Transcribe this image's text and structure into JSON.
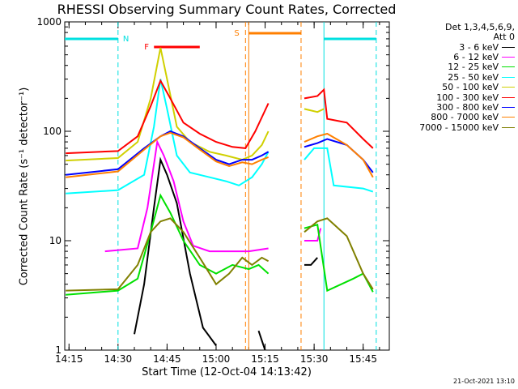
{
  "chart_data": {
    "type": "line",
    "title": "RHESSI Observing Summary Count Rates, Corrected",
    "xlabel": "Start Time (12-Oct-04 14:13:42)",
    "ylabel": "Corrected Count Rate (s⁻¹ detector⁻¹)",
    "yscale": "log",
    "ylim": [
      1,
      1000
    ],
    "xlim": [
      "14:13:42",
      "15:53"
    ],
    "x_ticks": [
      "14:15",
      "14:30",
      "14:45",
      "15:00",
      "15:15",
      "15:30",
      "15:45"
    ],
    "y_ticks": [
      "1",
      "10",
      "100",
      "1000"
    ],
    "legend_header": [
      "Det 1,3,4,5,6,9,",
      "Att 0"
    ],
    "legend_position": "top-right",
    "footer": "21-Oct-2021 13:10",
    "annotations": [
      {
        "label": "N",
        "color": "#00e0e0",
        "meaning": "night"
      },
      {
        "label": "F",
        "color": "#ff0000",
        "meaning": "flare"
      },
      {
        "label": "S",
        "color": "#ff7f00",
        "meaning": "SAA"
      }
    ],
    "series": [
      {
        "name": "3 - 6 keV",
        "color": "#000000",
        "points": [
          [
            "14:14",
            0
          ],
          [
            "14:30",
            0
          ],
          [
            "14:35",
            1.4
          ],
          [
            "14:38",
            4
          ],
          [
            "14:41",
            20
          ],
          [
            "14:43",
            55
          ],
          [
            "14:45",
            40
          ],
          [
            "14:48",
            22
          ],
          [
            "14:52",
            5
          ],
          [
            "14:56",
            1.6
          ],
          [
            "15:00",
            1.1
          ],
          [
            "15:05",
            0
          ],
          [
            "15:10",
            0
          ],
          [
            "15:13",
            1.5
          ],
          [
            "15:15",
            1
          ],
          [
            "15:17",
            0
          ],
          [
            "15:27",
            6
          ],
          [
            "15:29",
            6
          ],
          [
            "15:31",
            7
          ],
          [
            "15:35",
            0
          ]
        ]
      },
      {
        "name": "6 - 12 keV",
        "color": "#ff00ff",
        "points": [
          [
            "14:26",
            8
          ],
          [
            "14:36",
            8.5
          ],
          [
            "14:39",
            20
          ],
          [
            "14:42",
            80
          ],
          [
            "14:44",
            60
          ],
          [
            "14:47",
            35
          ],
          [
            "14:50",
            15
          ],
          [
            "14:53",
            9
          ],
          [
            "14:58",
            8
          ],
          [
            "15:05",
            8
          ],
          [
            "15:10",
            8
          ],
          [
            "15:16",
            8.5
          ],
          [
            "15:17",
            0
          ],
          [
            "15:27",
            10
          ],
          [
            "15:31",
            10
          ],
          [
            "15:32",
            13
          ],
          [
            "15:33",
            0
          ]
        ]
      },
      {
        "name": "12 - 25 keV",
        "color": "#00e000",
        "points": [
          [
            "14:14",
            3.2
          ],
          [
            "14:30",
            3.5
          ],
          [
            "14:36",
            4.5
          ],
          [
            "14:40",
            12
          ],
          [
            "14:43",
            26
          ],
          [
            "14:46",
            18
          ],
          [
            "14:50",
            10
          ],
          [
            "14:55",
            6
          ],
          [
            "15:00",
            5
          ],
          [
            "15:05",
            6
          ],
          [
            "15:10",
            5.5
          ],
          [
            "15:13",
            6
          ],
          [
            "15:16",
            5
          ],
          [
            "15:17",
            0
          ],
          [
            "15:27",
            13
          ],
          [
            "15:31",
            14
          ],
          [
            "15:34",
            3.5
          ],
          [
            "15:42",
            4.5
          ],
          [
            "15:45",
            5
          ],
          [
            "15:48",
            3.4
          ]
        ]
      },
      {
        "name": "25 - 50 keV",
        "color": "#00ffff",
        "points": [
          [
            "14:14",
            27
          ],
          [
            "14:30",
            29
          ],
          [
            "14:38",
            40
          ],
          [
            "14:41",
            110
          ],
          [
            "14:43",
            300
          ],
          [
            "14:45",
            160
          ],
          [
            "14:48",
            60
          ],
          [
            "14:52",
            42
          ],
          [
            "14:58",
            38
          ],
          [
            "15:03",
            35
          ],
          [
            "15:07",
            32
          ],
          [
            "15:11",
            38
          ],
          [
            "15:14",
            50
          ],
          [
            "15:16",
            65
          ],
          [
            "15:17",
            0
          ],
          [
            "15:27",
            55
          ],
          [
            "15:30",
            70
          ],
          [
            "15:34",
            70
          ],
          [
            "15:36",
            32
          ],
          [
            "15:45",
            30
          ],
          [
            "15:48",
            28
          ]
        ]
      },
      {
        "name": "50 - 100 keV",
        "color": "#d0d000",
        "points": [
          [
            "14:14",
            54
          ],
          [
            "14:30",
            57
          ],
          [
            "14:36",
            80
          ],
          [
            "14:40",
            200
          ],
          [
            "14:43",
            580
          ],
          [
            "14:45",
            300
          ],
          [
            "14:48",
            110
          ],
          [
            "14:52",
            80
          ],
          [
            "14:58",
            65
          ],
          [
            "15:03",
            60
          ],
          [
            "15:08",
            55
          ],
          [
            "15:11",
            60
          ],
          [
            "15:14",
            75
          ],
          [
            "15:16",
            100
          ],
          [
            "15:17",
            0
          ],
          [
            "15:27",
            160
          ],
          [
            "15:31",
            150
          ],
          [
            "15:33",
            160
          ],
          [
            "15:34",
            0
          ]
        ]
      },
      {
        "name": "100 - 300 keV",
        "color": "#ff0000",
        "points": [
          [
            "14:14",
            63
          ],
          [
            "14:30",
            66
          ],
          [
            "14:36",
            90
          ],
          [
            "14:40",
            170
          ],
          [
            "14:43",
            290
          ],
          [
            "14:46",
            200
          ],
          [
            "14:50",
            120
          ],
          [
            "14:55",
            95
          ],
          [
            "15:00",
            80
          ],
          [
            "15:05",
            72
          ],
          [
            "15:09",
            70
          ],
          [
            "15:12",
            100
          ],
          [
            "15:16",
            180
          ],
          [
            "15:17",
            0
          ],
          [
            "15:27",
            200
          ],
          [
            "15:31",
            210
          ],
          [
            "15:33",
            240
          ],
          [
            "15:34",
            130
          ],
          [
            "15:40",
            120
          ],
          [
            "15:45",
            85
          ],
          [
            "15:48",
            70
          ]
        ]
      },
      {
        "name": "300 - 800 keV",
        "color": "#0000ff",
        "points": [
          [
            "14:14",
            40
          ],
          [
            "14:30",
            45
          ],
          [
            "14:38",
            70
          ],
          [
            "14:43",
            90
          ],
          [
            "14:46",
            100
          ],
          [
            "14:50",
            90
          ],
          [
            "14:55",
            70
          ],
          [
            "15:00",
            55
          ],
          [
            "15:04",
            50
          ],
          [
            "15:08",
            55
          ],
          [
            "15:11",
            55
          ],
          [
            "15:14",
            60
          ],
          [
            "15:16",
            65
          ],
          [
            "15:17",
            0
          ],
          [
            "15:27",
            72
          ],
          [
            "15:31",
            78
          ],
          [
            "15:34",
            85
          ],
          [
            "15:40",
            75
          ],
          [
            "15:45",
            55
          ],
          [
            "15:48",
            42
          ]
        ]
      },
      {
        "name": "800 - 7000 keV",
        "color": "#ff8000",
        "points": [
          [
            "14:14",
            38
          ],
          [
            "14:30",
            43
          ],
          [
            "14:38",
            68
          ],
          [
            "14:43",
            90
          ],
          [
            "14:46",
            97
          ],
          [
            "14:50",
            88
          ],
          [
            "14:55",
            68
          ],
          [
            "15:00",
            53
          ],
          [
            "15:04",
            48
          ],
          [
            "15:08",
            52
          ],
          [
            "15:11",
            50
          ],
          [
            "15:14",
            55
          ],
          [
            "15:16",
            58
          ],
          [
            "15:17",
            0
          ],
          [
            "15:27",
            80
          ],
          [
            "15:31",
            90
          ],
          [
            "15:34",
            95
          ],
          [
            "15:40",
            75
          ],
          [
            "15:45",
            55
          ],
          [
            "15:48",
            38
          ]
        ]
      },
      {
        "name": "7000 - 15000 keV",
        "color": "#808000",
        "points": [
          [
            "14:14",
            3.5
          ],
          [
            "14:30",
            3.6
          ],
          [
            "14:36",
            6
          ],
          [
            "14:40",
            12
          ],
          [
            "14:43",
            15
          ],
          [
            "14:46",
            16
          ],
          [
            "14:50",
            12
          ],
          [
            "14:55",
            7
          ],
          [
            "15:00",
            4
          ],
          [
            "15:04",
            5
          ],
          [
            "15:08",
            7
          ],
          [
            "15:11",
            6
          ],
          [
            "15:14",
            7
          ],
          [
            "15:16",
            6.5
          ],
          [
            "15:17",
            0
          ],
          [
            "15:27",
            12
          ],
          [
            "15:31",
            15
          ],
          [
            "15:34",
            16
          ],
          [
            "15:40",
            11
          ],
          [
            "15:45",
            5
          ],
          [
            "15:48",
            3.6
          ]
        ]
      }
    ]
  }
}
